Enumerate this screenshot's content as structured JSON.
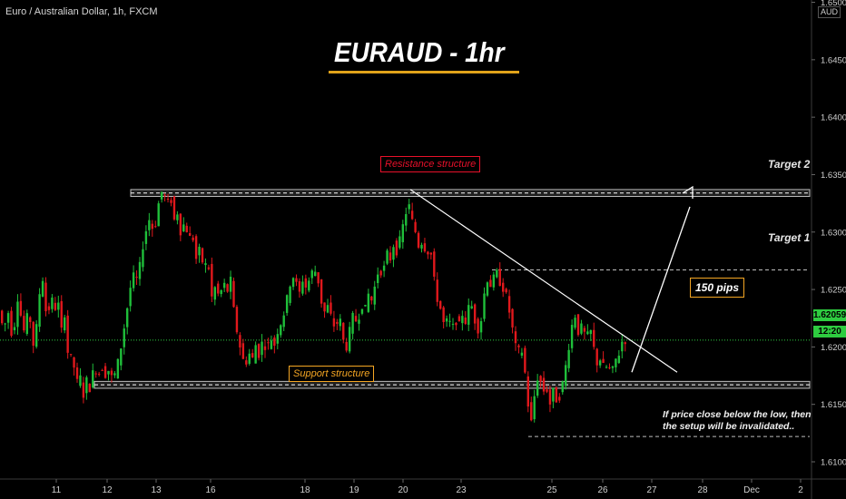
{
  "header": {
    "symbol_line": "Euro / Australian Dollar, 1h, FXCM",
    "title": "EURAUD - 1hr"
  },
  "annotations": {
    "resistance": "Resistance structure",
    "support": "Support structure",
    "target2": "Target 2",
    "target1": "Target 1",
    "pips": "150 pips",
    "note_line1": "If price close below the low, then",
    "note_line2": "the setup will be invalidated.."
  },
  "price_axis": {
    "unit": "AUD",
    "current_price": "1.62059",
    "countdown": "12:20"
  },
  "colors": {
    "up": "#1fbf3a",
    "down": "#e0181c",
    "resistance": "#e8102a",
    "support": "#f5a623",
    "title_underline": "#e0a31a",
    "current_price": "#2ecc40"
  },
  "chart_data": {
    "type": "candlestick",
    "ylim": [
      1.6085,
      1.6502
    ],
    "y_ticks": [
      "1.65000",
      "1.64500",
      "1.64000",
      "1.63500",
      "1.63000",
      "1.62500",
      "1.62000",
      "1.61500",
      "1.61000"
    ],
    "x_ticks": [
      "11",
      "12",
      "13",
      "16",
      "18",
      "19",
      "20",
      "23",
      "25",
      "26",
      "27",
      "28",
      "Dec",
      "2"
    ],
    "resistance_zone": [
      1.6331,
      1.6337
    ],
    "support_zone": [
      1.6164,
      1.617
    ],
    "target1": 1.6267,
    "target2": 1.6335,
    "invalidation_level": 1.6122,
    "current_price": 1.62059,
    "path": [
      [
        0,
        1.6235
      ],
      [
        6,
        1.6215
      ],
      [
        12,
        1.6232
      ],
      [
        16,
        1.6205
      ],
      [
        22,
        1.6245
      ],
      [
        28,
        1.6212
      ],
      [
        34,
        1.6232
      ],
      [
        40,
        1.6196
      ],
      [
        46,
        1.6248
      ],
      [
        50,
        1.6262
      ],
      [
        54,
        1.6218
      ],
      [
        58,
        1.6246
      ],
      [
        62,
        1.6232
      ],
      [
        66,
        1.624
      ],
      [
        70,
        1.6214
      ],
      [
        74,
        1.6232
      ],
      [
        78,
        1.6182
      ],
      [
        82,
        1.6196
      ],
      [
        86,
        1.6166
      ],
      [
        90,
        1.6176
      ],
      [
        94,
        1.6158
      ],
      [
        98,
        1.6172
      ],
      [
        102,
        1.6162
      ],
      [
        106,
        1.6186
      ],
      [
        110,
        1.6174
      ],
      [
        114,
        1.6184
      ],
      [
        118,
        1.6176
      ],
      [
        122,
        1.618
      ],
      [
        126,
        1.6172
      ],
      [
        130,
        1.6178
      ],
      [
        136,
        1.6202
      ],
      [
        142,
        1.6232
      ],
      [
        148,
        1.6262
      ],
      [
        154,
        1.6258
      ],
      [
        160,
        1.629
      ],
      [
        166,
        1.6312
      ],
      [
        172,
        1.63
      ],
      [
        178,
        1.633
      ],
      [
        182,
        1.6338
      ],
      [
        186,
        1.6322
      ],
      [
        190,
        1.6332
      ],
      [
        194,
        1.631
      ],
      [
        198,
        1.6318
      ],
      [
        202,
        1.6296
      ],
      [
        206,
        1.6312
      ],
      [
        210,
        1.6292
      ],
      [
        214,
        1.63
      ],
      [
        218,
        1.6276
      ],
      [
        222,
        1.6284
      ],
      [
        226,
        1.6272
      ],
      [
        232,
        1.627
      ],
      [
        236,
        1.624
      ],
      [
        240,
        1.6255
      ],
      [
        244,
        1.624
      ],
      [
        248,
        1.6258
      ],
      [
        252,
        1.6246
      ],
      [
        256,
        1.626
      ],
      [
        260,
        1.623
      ],
      [
        264,
        1.621
      ],
      [
        268,
        1.6196
      ],
      [
        272,
        1.6182
      ],
      [
        276,
        1.6196
      ],
      [
        280,
        1.6188
      ],
      [
        284,
        1.6202
      ],
      [
        288,
        1.6192
      ],
      [
        292,
        1.6208
      ],
      [
        296,
        1.6196
      ],
      [
        300,
        1.621
      ],
      [
        304,
        1.62
      ],
      [
        308,
        1.6214
      ],
      [
        312,
        1.6222
      ],
      [
        316,
        1.6232
      ],
      [
        320,
        1.6248
      ],
      [
        324,
        1.6264
      ],
      [
        328,
        1.6256
      ],
      [
        332,
        1.6246
      ],
      [
        336,
        1.626
      ],
      [
        340,
        1.625
      ],
      [
        344,
        1.6262
      ],
      [
        348,
        1.6268
      ],
      [
        352,
        1.6262
      ],
      [
        356,
        1.624
      ],
      [
        360,
        1.623
      ],
      [
        364,
        1.6236
      ],
      [
        368,
        1.6222
      ],
      [
        372,
        1.6216
      ],
      [
        376,
        1.6228
      ],
      [
        380,
        1.6206
      ],
      [
        384,
        1.62
      ],
      [
        388,
        1.6216
      ],
      [
        392,
        1.623
      ],
      [
        396,
        1.6218
      ],
      [
        400,
        1.624
      ],
      [
        404,
        1.623
      ],
      [
        408,
        1.6246
      ],
      [
        412,
        1.624
      ],
      [
        416,
        1.6256
      ],
      [
        420,
        1.627
      ],
      [
        424,
        1.6262
      ],
      [
        428,
        1.6282
      ],
      [
        432,
        1.6276
      ],
      [
        436,
        1.629
      ],
      [
        440,
        1.6282
      ],
      [
        444,
        1.6298
      ],
      [
        448,
        1.6312
      ],
      [
        452,
        1.6326
      ],
      [
        456,
        1.631
      ],
      [
        460,
        1.63
      ],
      [
        464,
        1.6286
      ],
      [
        468,
        1.6294
      ],
      [
        472,
        1.628
      ],
      [
        476,
        1.6288
      ],
      [
        480,
        1.626
      ],
      [
        484,
        1.6242
      ],
      [
        488,
        1.6232
      ],
      [
        492,
        1.6216
      ],
      [
        496,
        1.6226
      ],
      [
        500,
        1.6214
      ],
      [
        504,
        1.6224
      ],
      [
        508,
        1.6218
      ],
      [
        512,
        1.623
      ],
      [
        516,
        1.622
      ],
      [
        520,
        1.6242
      ],
      [
        524,
        1.6228
      ],
      [
        528,
        1.6214
      ],
      [
        532,
        1.6222
      ],
      [
        536,
        1.6248
      ],
      [
        540,
        1.6262
      ],
      [
        544,
        1.625
      ],
      [
        548,
        1.6268
      ],
      [
        552,
        1.6258
      ],
      [
        556,
        1.6252
      ],
      [
        560,
        1.6244
      ],
      [
        564,
        1.6228
      ],
      [
        568,
        1.621
      ],
      [
        572,
        1.6192
      ],
      [
        576,
        1.6202
      ],
      [
        580,
        1.6182
      ],
      [
        584,
        1.615
      ],
      [
        588,
        1.6132
      ],
      [
        592,
        1.6166
      ],
      [
        596,
        1.6178
      ],
      [
        600,
        1.616
      ],
      [
        604,
        1.6166
      ],
      [
        608,
        1.615
      ],
      [
        612,
        1.6162
      ],
      [
        616,
        1.6152
      ],
      [
        620,
        1.616
      ],
      [
        624,
        1.6176
      ],
      [
        628,
        1.6196
      ],
      [
        632,
        1.6218
      ],
      [
        636,
        1.6228
      ],
      [
        640,
        1.621
      ],
      [
        644,
        1.622
      ],
      [
        648,
        1.6204
      ],
      [
        652,
        1.6218
      ],
      [
        656,
        1.62
      ],
      [
        660,
        1.6186
      ],
      [
        664,
        1.619
      ],
      [
        668,
        1.618
      ],
      [
        672,
        1.6184
      ],
      [
        676,
        1.6176
      ],
      [
        680,
        1.6188
      ],
      [
        684,
        1.6194
      ],
      [
        688,
        1.6206
      ]
    ]
  }
}
